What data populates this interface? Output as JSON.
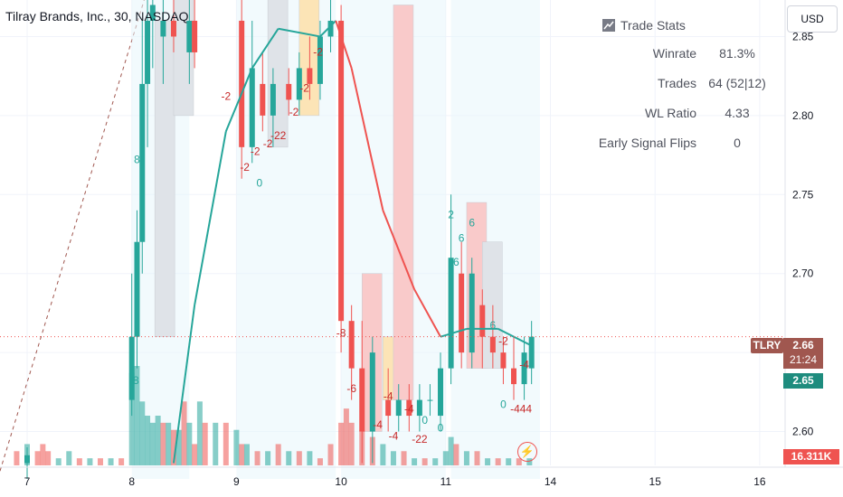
{
  "header": {
    "title": "Tilray Brands, Inc., 30, NASDAQ"
  },
  "currency_button": "USD",
  "stats_panel": {
    "title": "Trade Stats",
    "rows": [
      {
        "label": "Winrate",
        "value": "81.3%"
      },
      {
        "label": "Trades",
        "value": "64 (52|12)"
      },
      {
        "label": "WL Ratio",
        "value": "4.33"
      },
      {
        "label": "Early Signal Flips",
        "value": "0"
      }
    ]
  },
  "price_tags": {
    "ticker": "TLRY",
    "last_price": "2.66",
    "countdown": "21:24",
    "line_value": "2.65",
    "volume": "16.311K"
  },
  "colors": {
    "up": "#26a69a",
    "down": "#ef5350",
    "ma": "#ef5350",
    "ma_up": "#26a69a",
    "grid": "#f0f3fa",
    "profile_buy": "#fce4b6",
    "profile_sell": "#f9caca"
  },
  "icons": [
    "chart-stats-icon",
    "flash-icon"
  ],
  "chart_data": {
    "type": "candlestick",
    "y_axis_ticks": [
      2.6,
      2.65,
      2.7,
      2.75,
      2.8,
      2.85
    ],
    "ylim": [
      2.57,
      2.88
    ],
    "x_axis_ticks": [
      "7",
      "8",
      "9",
      "10",
      "11",
      "14",
      "15",
      "16"
    ],
    "grid": true,
    "candles": [
      {
        "x": 0.0,
        "o": 2.58,
        "h": 2.59,
        "l": 2.57,
        "c": 2.585
      },
      {
        "x": 1.0,
        "o": 2.62,
        "h": 2.7,
        "l": 2.61,
        "c": 2.66
      },
      {
        "x": 1.05,
        "o": 2.66,
        "h": 2.74,
        "l": 2.64,
        "c": 2.72
      },
      {
        "x": 1.1,
        "o": 2.72,
        "h": 2.86,
        "l": 2.7,
        "c": 2.82
      },
      {
        "x": 1.15,
        "o": 2.82,
        "h": 2.88,
        "l": 2.78,
        "c": 2.86
      },
      {
        "x": 1.2,
        "o": 2.86,
        "h": 2.88,
        "l": 2.83,
        "c": 2.87
      },
      {
        "x": 1.3,
        "o": 2.85,
        "h": 2.88,
        "l": 2.82,
        "c": 2.86
      },
      {
        "x": 1.4,
        "o": 2.86,
        "h": 2.88,
        "l": 2.84,
        "c": 2.85
      },
      {
        "x": 1.55,
        "o": 2.84,
        "h": 2.88,
        "l": 2.82,
        "c": 2.86
      },
      {
        "x": 1.6,
        "o": 2.86,
        "h": 2.88,
        "l": 2.83,
        "c": 2.84
      },
      {
        "x": 2.05,
        "o": 2.86,
        "h": 2.88,
        "l": 2.76,
        "c": 2.78
      },
      {
        "x": 2.15,
        "o": 2.78,
        "h": 2.86,
        "l": 2.77,
        "c": 2.83
      },
      {
        "x": 2.25,
        "o": 2.82,
        "h": 2.84,
        "l": 2.79,
        "c": 2.8
      },
      {
        "x": 2.35,
        "o": 2.8,
        "h": 2.83,
        "l": 2.78,
        "c": 2.82
      },
      {
        "x": 2.5,
        "o": 2.82,
        "h": 2.83,
        "l": 2.8,
        "c": 2.81
      },
      {
        "x": 2.6,
        "o": 2.81,
        "h": 2.84,
        "l": 2.8,
        "c": 2.83
      },
      {
        "x": 2.7,
        "o": 2.83,
        "h": 2.85,
        "l": 2.81,
        "c": 2.82
      },
      {
        "x": 2.8,
        "o": 2.82,
        "h": 2.86,
        "l": 2.81,
        "c": 2.85
      },
      {
        "x": 2.9,
        "o": 2.85,
        "h": 2.88,
        "l": 2.84,
        "c": 2.86
      },
      {
        "x": 3.0,
        "o": 2.86,
        "h": 2.87,
        "l": 2.65,
        "c": 2.67
      },
      {
        "x": 3.1,
        "o": 2.67,
        "h": 2.68,
        "l": 2.62,
        "c": 2.64
      },
      {
        "x": 3.2,
        "o": 2.64,
        "h": 2.67,
        "l": 2.58,
        "c": 2.6
      },
      {
        "x": 3.3,
        "o": 2.6,
        "h": 2.66,
        "l": 2.58,
        "c": 2.65
      },
      {
        "x": 3.45,
        "o": 2.62,
        "h": 2.64,
        "l": 2.6,
        "c": 2.61
      },
      {
        "x": 3.55,
        "o": 2.61,
        "h": 2.63,
        "l": 2.6,
        "c": 2.62
      },
      {
        "x": 3.65,
        "o": 2.62,
        "h": 2.63,
        "l": 2.6,
        "c": 2.61
      },
      {
        "x": 3.75,
        "o": 2.61,
        "h": 2.63,
        "l": 2.6,
        "c": 2.62
      },
      {
        "x": 3.85,
        "o": 2.62,
        "h": 2.63,
        "l": 2.61,
        "c": 2.62
      },
      {
        "x": 3.95,
        "o": 2.61,
        "h": 2.65,
        "l": 2.6,
        "c": 2.64
      },
      {
        "x": 4.05,
        "o": 2.64,
        "h": 2.75,
        "l": 2.63,
        "c": 2.71
      },
      {
        "x": 4.15,
        "o": 2.7,
        "h": 2.72,
        "l": 2.64,
        "c": 2.65
      },
      {
        "x": 4.25,
        "o": 2.65,
        "h": 2.71,
        "l": 2.64,
        "c": 2.7
      },
      {
        "x": 4.35,
        "o": 2.68,
        "h": 2.69,
        "l": 2.64,
        "c": 2.66
      },
      {
        "x": 4.45,
        "o": 2.66,
        "h": 2.68,
        "l": 2.64,
        "c": 2.65
      },
      {
        "x": 4.55,
        "o": 2.65,
        "h": 2.66,
        "l": 2.63,
        "c": 2.64
      },
      {
        "x": 4.65,
        "o": 2.64,
        "h": 2.66,
        "l": 2.62,
        "c": 2.63
      },
      {
        "x": 4.75,
        "o": 2.63,
        "h": 2.66,
        "l": 2.62,
        "c": 2.65
      },
      {
        "x": 4.82,
        "o": 2.64,
        "h": 2.67,
        "l": 2.63,
        "c": 2.66
      }
    ],
    "moving_average": [
      {
        "x": 1.4,
        "y": 2.58
      },
      {
        "x": 1.6,
        "y": 2.68
      },
      {
        "x": 1.9,
        "y": 2.79
      },
      {
        "x": 2.15,
        "y": 2.83
      },
      {
        "x": 2.4,
        "y": 2.855
      },
      {
        "x": 2.8,
        "y": 2.85
      },
      {
        "x": 2.95,
        "y": 2.86
      },
      {
        "x": 3.1,
        "y": 2.83
      },
      {
        "x": 3.4,
        "y": 2.74
      },
      {
        "x": 3.7,
        "y": 2.69
      },
      {
        "x": 3.95,
        "y": 2.66
      },
      {
        "x": 4.2,
        "y": 2.665
      },
      {
        "x": 4.5,
        "y": 2.665
      },
      {
        "x": 4.8,
        "y": 2.655
      }
    ],
    "signal_labels": [
      {
        "x": 1.05,
        "y": 2.77,
        "text": "8"
      },
      {
        "x": 1.04,
        "y": 2.63,
        "text": "8"
      },
      {
        "x": 1.2,
        "y": 2.88,
        "text": "8"
      },
      {
        "x": 1.9,
        "y": 2.81,
        "text": "-2"
      },
      {
        "x": 2.08,
        "y": 2.765,
        "text": "-2"
      },
      {
        "x": 2.22,
        "y": 2.755,
        "text": "0"
      },
      {
        "x": 2.18,
        "y": 2.775,
        "text": "-2"
      },
      {
        "x": 2.3,
        "y": 2.78,
        "text": "-2"
      },
      {
        "x": 2.4,
        "y": 2.785,
        "text": "-22"
      },
      {
        "x": 2.55,
        "y": 2.8,
        "text": "-2"
      },
      {
        "x": 2.65,
        "y": 2.815,
        "text": "-2"
      },
      {
        "x": 2.78,
        "y": 2.838,
        "text": "-2"
      },
      {
        "x": 3.0,
        "y": 2.66,
        "text": "-8"
      },
      {
        "x": 3.1,
        "y": 2.625,
        "text": "-6"
      },
      {
        "x": 3.35,
        "y": 2.602,
        "text": "-4"
      },
      {
        "x": 3.45,
        "y": 2.62,
        "text": "-4"
      },
      {
        "x": 3.5,
        "y": 2.595,
        "text": "-4"
      },
      {
        "x": 3.65,
        "y": 2.612,
        "text": "-4"
      },
      {
        "x": 3.75,
        "y": 2.593,
        "text": "-22"
      },
      {
        "x": 3.8,
        "y": 2.605,
        "text": "0"
      },
      {
        "x": 3.95,
        "y": 2.6,
        "text": "0"
      },
      {
        "x": 4.15,
        "y": 2.72,
        "text": "6"
      },
      {
        "x": 4.25,
        "y": 2.73,
        "text": "6"
      },
      {
        "x": 4.1,
        "y": 2.705,
        "text": "6"
      },
      {
        "x": 4.45,
        "y": 2.665,
        "text": "6"
      },
      {
        "x": 4.55,
        "y": 2.655,
        "text": "-2"
      },
      {
        "x": 4.75,
        "y": 2.64,
        "text": "-4"
      },
      {
        "x": 4.55,
        "y": 2.615,
        "text": "0"
      },
      {
        "x": 4.72,
        "y": 2.612,
        "text": "-444"
      },
      {
        "x": 4.05,
        "y": 2.735,
        "text": "2"
      }
    ],
    "volume": [
      {
        "x": -0.1,
        "v": 2,
        "up": false
      },
      {
        "x": 0.0,
        "v": 3,
        "up": true
      },
      {
        "x": 0.1,
        "v": 2,
        "up": false
      },
      {
        "x": 0.15,
        "v": 3,
        "up": false
      },
      {
        "x": 0.2,
        "v": 2,
        "up": false
      },
      {
        "x": 0.3,
        "v": 1,
        "up": true
      },
      {
        "x": 0.4,
        "v": 2,
        "up": true
      },
      {
        "x": 0.5,
        "v": 1,
        "up": false
      },
      {
        "x": 0.6,
        "v": 1,
        "up": true
      },
      {
        "x": 0.7,
        "v": 1,
        "up": false
      },
      {
        "x": 0.8,
        "v": 1,
        "up": true
      },
      {
        "x": 0.9,
        "v": 1,
        "up": false
      },
      {
        "x": 1.0,
        "v": 13,
        "up": true
      },
      {
        "x": 1.05,
        "v": 14,
        "up": true
      },
      {
        "x": 1.1,
        "v": 9,
        "up": true
      },
      {
        "x": 1.15,
        "v": 7,
        "up": true
      },
      {
        "x": 1.2,
        "v": 6,
        "up": true
      },
      {
        "x": 1.25,
        "v": 7,
        "up": true
      },
      {
        "x": 1.3,
        "v": 6,
        "up": false
      },
      {
        "x": 1.35,
        "v": 6,
        "up": true
      },
      {
        "x": 1.4,
        "v": 5,
        "up": false
      },
      {
        "x": 1.45,
        "v": 5,
        "up": true
      },
      {
        "x": 1.5,
        "v": 9,
        "up": false
      },
      {
        "x": 1.55,
        "v": 6,
        "up": true
      },
      {
        "x": 1.6,
        "v": 3,
        "up": false
      },
      {
        "x": 1.65,
        "v": 9,
        "up": true
      },
      {
        "x": 1.7,
        "v": 6,
        "up": false
      },
      {
        "x": 1.8,
        "v": 6,
        "up": true
      },
      {
        "x": 1.9,
        "v": 6,
        "up": false
      },
      {
        "x": 2.0,
        "v": 5,
        "up": true
      },
      {
        "x": 2.05,
        "v": 3,
        "up": false
      },
      {
        "x": 2.1,
        "v": 3,
        "up": true
      },
      {
        "x": 2.2,
        "v": 2,
        "up": false
      },
      {
        "x": 2.3,
        "v": 2,
        "up": true
      },
      {
        "x": 2.4,
        "v": 3,
        "up": false
      },
      {
        "x": 2.5,
        "v": 2,
        "up": true
      },
      {
        "x": 2.6,
        "v": 2,
        "up": false
      },
      {
        "x": 2.7,
        "v": 2,
        "up": true
      },
      {
        "x": 2.8,
        "v": 1,
        "up": false
      },
      {
        "x": 2.9,
        "v": 3,
        "up": false
      },
      {
        "x": 3.0,
        "v": 6,
        "up": false
      },
      {
        "x": 3.05,
        "v": 8,
        "up": false
      },
      {
        "x": 3.1,
        "v": 6,
        "up": false
      },
      {
        "x": 3.2,
        "v": 5,
        "up": false
      },
      {
        "x": 3.3,
        "v": 4,
        "up": false
      },
      {
        "x": 3.4,
        "v": 3,
        "up": true
      },
      {
        "x": 3.5,
        "v": 2,
        "up": true
      },
      {
        "x": 3.6,
        "v": 2,
        "up": false
      },
      {
        "x": 3.7,
        "v": 1,
        "up": true
      },
      {
        "x": 3.8,
        "v": 1,
        "up": false
      },
      {
        "x": 3.9,
        "v": 1,
        "up": true
      },
      {
        "x": 4.0,
        "v": 2,
        "up": true
      },
      {
        "x": 4.05,
        "v": 4,
        "up": true
      },
      {
        "x": 4.1,
        "v": 3,
        "up": false
      },
      {
        "x": 4.2,
        "v": 2,
        "up": true
      },
      {
        "x": 4.3,
        "v": 2,
        "up": false
      },
      {
        "x": 4.4,
        "v": 1,
        "up": true
      },
      {
        "x": 4.5,
        "v": 1,
        "up": false
      },
      {
        "x": 4.6,
        "v": 1,
        "up": true
      },
      {
        "x": 4.7,
        "v": 1,
        "up": false
      },
      {
        "x": 4.8,
        "v": 1,
        "up": true
      }
    ]
  }
}
